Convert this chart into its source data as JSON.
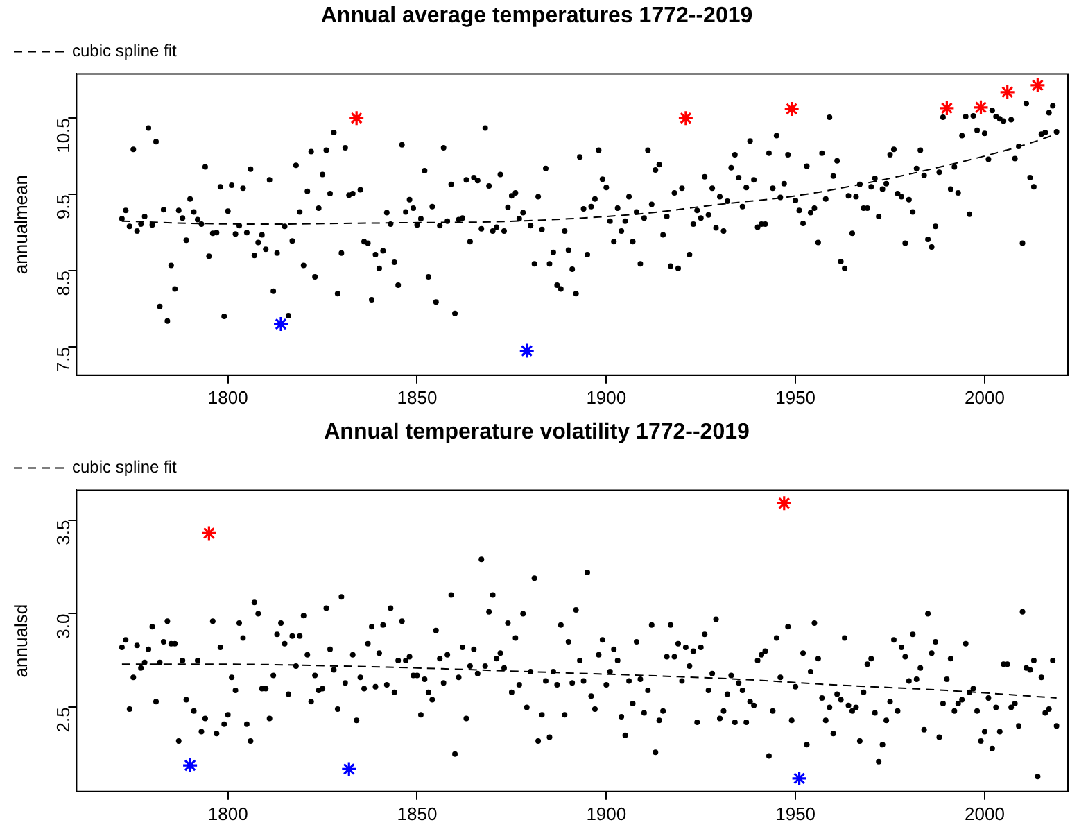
{
  "chart_data": [
    {
      "type": "scatter",
      "title": "Annual average temperatures 1772--2019",
      "ylabel": "annualmean",
      "xlim": [
        1760,
        2022
      ],
      "xticks": [
        1800,
        1850,
        1900,
        1950,
        2000
      ],
      "ylim": [
        7.13,
        11.08
      ],
      "yticks": [
        7.5,
        8.5,
        9.5,
        10.5
      ],
      "grid": false,
      "legend": "top left",
      "marker": "circle",
      "series": [
        {
          "color": "#000000",
          "x": [
            1772,
            1773,
            1774,
            1775,
            1776,
            1777,
            1778,
            1779,
            1780,
            1781,
            1782,
            1783,
            1784,
            1785,
            1786,
            1787,
            1788,
            1789,
            1790,
            1791,
            1792,
            1793,
            1794,
            1795,
            1796,
            1797,
            1798,
            1799,
            1800,
            1801,
            1802,
            1803,
            1804,
            1805,
            1806,
            1807,
            1808,
            1809,
            1810,
            1811,
            1812,
            1813,
            1815,
            1816,
            1817,
            1818,
            1819,
            1820,
            1821,
            1822,
            1823,
            1824,
            1825,
            1826,
            1827,
            1828,
            1829,
            1830,
            1831,
            1832,
            1833,
            1835,
            1836,
            1837,
            1838,
            1839,
            1840,
            1841,
            1842,
            1843,
            1844,
            1845,
            1846,
            1847,
            1848,
            1849,
            1850,
            1851,
            1852,
            1853,
            1854,
            1855,
            1856,
            1857,
            1858,
            1859,
            1860,
            1861,
            1862,
            1863,
            1864,
            1865,
            1866,
            1867,
            1868,
            1869,
            1870,
            1871,
            1872,
            1873,
            1874,
            1875,
            1876,
            1877,
            1878,
            1880,
            1881,
            1882,
            1883,
            1884,
            1885,
            1886,
            1887,
            1888,
            1889,
            1890,
            1891,
            1892,
            1893,
            1894,
            1895,
            1896,
            1897,
            1898,
            1899,
            1900,
            1901,
            1902,
            1903,
            1904,
            1905,
            1906,
            1907,
            1908,
            1909,
            1910,
            1911,
            1912,
            1913,
            1914,
            1915,
            1916,
            1917,
            1918,
            1919,
            1920,
            1922,
            1923,
            1924,
            1925,
            1926,
            1927,
            1928,
            1929,
            1930,
            1931,
            1932,
            1933,
            1934,
            1935,
            1936,
            1937,
            1938,
            1939,
            1940,
            1941,
            1942,
            1943,
            1944,
            1945,
            1946,
            1947,
            1948,
            1950,
            1951,
            1952,
            1953,
            1954,
            1955,
            1956,
            1957,
            1958,
            1959,
            1960,
            1961,
            1962,
            1963,
            1964,
            1965,
            1966,
            1967,
            1968,
            1969,
            1970,
            1971,
            1972,
            1973,
            1974,
            1975,
            1976,
            1977,
            1978,
            1979,
            1980,
            1981,
            1982,
            1983,
            1984,
            1985,
            1986,
            1987,
            1988,
            1989,
            1991,
            1992,
            1993,
            1994,
            1995,
            1996,
            1997,
            1998,
            2000,
            2001,
            2002,
            2003,
            2004,
            2005,
            2007,
            2008,
            2009,
            2010,
            2011,
            2012,
            2013,
            2015,
            2016,
            2017,
            2018,
            2019
          ],
          "values": [
            9.18,
            9.29,
            9.08,
            10.09,
            9.02,
            9.11,
            9.21,
            10.37,
            9.1,
            10.19,
            8.03,
            9.3,
            7.84,
            8.57,
            8.26,
            9.29,
            9.19,
            8.9,
            9.44,
            9.27,
            9.17,
            9.11,
            9.86,
            8.69,
            8.99,
            9.0,
            9.6,
            7.9,
            9.28,
            9.62,
            8.98,
            9.09,
            9.58,
            9.0,
            9.83,
            8.7,
            8.87,
            8.97,
            8.78,
            9.69,
            8.23,
            8.73,
            9.08,
            7.91,
            8.89,
            9.88,
            9.27,
            8.57,
            9.54,
            10.06,
            8.42,
            9.32,
            9.76,
            10.08,
            9.51,
            10.31,
            8.2,
            8.73,
            10.11,
            9.49,
            9.51,
            9.56,
            8.88,
            8.86,
            8.12,
            8.71,
            8.53,
            8.76,
            9.26,
            9.11,
            8.61,
            8.31,
            10.15,
            9.27,
            9.43,
            9.32,
            9.1,
            9.18,
            9.81,
            8.42,
            9.34,
            8.09,
            9.09,
            10.11,
            9.15,
            9.63,
            7.94,
            9.17,
            9.19,
            9.69,
            8.88,
            9.72,
            9.68,
            9.05,
            10.37,
            9.61,
            9.02,
            9.07,
            9.76,
            9.02,
            9.33,
            9.48,
            9.52,
            9.18,
            9.26,
            9.09,
            8.59,
            9.47,
            9.04,
            9.84,
            8.59,
            8.74,
            8.31,
            8.26,
            9.02,
            8.77,
            8.52,
            8.2,
            9.99,
            9.31,
            8.71,
            9.34,
            9.44,
            10.08,
            9.7,
            9.59,
            9.15,
            8.88,
            9.32,
            9.02,
            9.15,
            9.47,
            8.88,
            9.27,
            8.59,
            9.19,
            10.08,
            9.37,
            9.82,
            9.89,
            8.97,
            9.21,
            8.56,
            9.52,
            8.53,
            9.58,
            8.71,
            9.11,
            9.29,
            9.19,
            9.73,
            9.23,
            9.58,
            9.06,
            9.47,
            9.02,
            9.41,
            9.85,
            10.02,
            9.72,
            9.34,
            9.59,
            10.2,
            9.69,
            9.07,
            9.11,
            9.11,
            10.04,
            9.58,
            10.27,
            9.46,
            9.64,
            10.02,
            9.42,
            9.29,
            9.12,
            9.87,
            9.26,
            9.32,
            8.87,
            10.04,
            9.44,
            10.51,
            9.74,
            9.94,
            8.62,
            8.53,
            9.48,
            8.99,
            9.47,
            9.63,
            9.32,
            9.32,
            9.6,
            9.71,
            9.21,
            9.57,
            9.64,
            10.02,
            10.09,
            9.51,
            9.47,
            8.86,
            9.43,
            9.27,
            9.84,
            10.08,
            9.75,
            8.91,
            8.81,
            9.08,
            9.79,
            10.51,
            9.57,
            9.86,
            9.52,
            10.27,
            10.52,
            9.24,
            10.53,
            10.34,
            10.3,
            9.96,
            10.6,
            10.52,
            10.49,
            10.46,
            10.48,
            9.97,
            10.13,
            8.86,
            10.69,
            9.72,
            9.6,
            10.29,
            10.31,
            10.57,
            10.66,
            10.32
          ]
        },
        {
          "color": "#ff0000",
          "marker": "cross",
          "x": [
            1834,
            1921,
            1949,
            1990,
            1999,
            2006,
            2014
          ],
          "values": [
            10.5,
            10.5,
            10.62,
            10.63,
            10.64,
            10.84,
            10.93
          ]
        },
        {
          "color": "#0000ff",
          "marker": "cross",
          "x": [
            1814,
            1879
          ],
          "values": [
            7.8,
            7.45
          ]
        },
        {
          "type": "line",
          "name": "cubic spline fit",
          "color": "#000000",
          "line_style": "dashed",
          "marker": "none",
          "x": [
            1772,
            1790,
            1810,
            1830,
            1850,
            1870,
            1890,
            1910,
            1930,
            1950,
            1970,
            1990,
            2010,
            2019
          ],
          "values": [
            9.15,
            9.12,
            9.11,
            9.12,
            9.13,
            9.14,
            9.18,
            9.25,
            9.37,
            9.48,
            9.66,
            9.88,
            10.14,
            10.29
          ]
        }
      ]
    },
    {
      "type": "scatter",
      "title": "Annual temperature volatility 1772--2019",
      "ylabel": "annualsd",
      "xlim": [
        1760,
        2022
      ],
      "xticks": [
        1800,
        1850,
        1900,
        1950,
        2000
      ],
      "ylim": [
        2.05,
        3.66
      ],
      "yticks": [
        2.5,
        {
          "value": 3,
          "label": "3.0"
        },
        3.5
      ],
      "grid": false,
      "legend": "top left",
      "marker": "circle",
      "series": [
        {
          "color": "#000000",
          "x": [
            1772,
            1773,
            1774,
            1775,
            1776,
            1777,
            1778,
            1779,
            1780,
            1781,
            1782,
            1783,
            1784,
            1785,
            1786,
            1787,
            1788,
            1789,
            1791,
            1792,
            1793,
            1794,
            1796,
            1797,
            1798,
            1799,
            1800,
            1801,
            1802,
            1803,
            1804,
            1805,
            1806,
            1807,
            1808,
            1809,
            1810,
            1811,
            1812,
            1813,
            1814,
            1815,
            1816,
            1817,
            1818,
            1819,
            1820,
            1821,
            1822,
            1823,
            1824,
            1825,
            1826,
            1827,
            1828,
            1829,
            1830,
            1831,
            1833,
            1834,
            1835,
            1836,
            1837,
            1838,
            1839,
            1840,
            1841,
            1842,
            1843,
            1844,
            1845,
            1846,
            1847,
            1848,
            1849,
            1850,
            1851,
            1852,
            1853,
            1854,
            1855,
            1856,
            1857,
            1858,
            1859,
            1860,
            1861,
            1862,
            1863,
            1864,
            1865,
            1866,
            1867,
            1868,
            1869,
            1870,
            1871,
            1872,
            1873,
            1874,
            1875,
            1876,
            1877,
            1878,
            1879,
            1880,
            1881,
            1882,
            1883,
            1884,
            1885,
            1886,
            1887,
            1888,
            1889,
            1890,
            1891,
            1892,
            1893,
            1894,
            1895,
            1896,
            1897,
            1898,
            1899,
            1900,
            1901,
            1902,
            1903,
            1904,
            1905,
            1906,
            1907,
            1908,
            1909,
            1910,
            1911,
            1912,
            1913,
            1914,
            1915,
            1916,
            1917,
            1918,
            1919,
            1920,
            1921,
            1922,
            1923,
            1924,
            1925,
            1926,
            1927,
            1928,
            1929,
            1930,
            1931,
            1932,
            1933,
            1934,
            1935,
            1936,
            1937,
            1938,
            1939,
            1940,
            1941,
            1942,
            1943,
            1944,
            1945,
            1946,
            1948,
            1949,
            1950,
            1952,
            1953,
            1954,
            1955,
            1956,
            1957,
            1958,
            1959,
            1960,
            1961,
            1962,
            1963,
            1964,
            1965,
            1966,
            1967,
            1968,
            1969,
            1970,
            1971,
            1972,
            1973,
            1974,
            1975,
            1976,
            1977,
            1978,
            1979,
            1980,
            1981,
            1982,
            1983,
            1984,
            1985,
            1986,
            1987,
            1988,
            1989,
            1990,
            1991,
            1992,
            1993,
            1994,
            1995,
            1996,
            1997,
            1998,
            1999,
            2000,
            2001,
            2002,
            2003,
            2004,
            2005,
            2006,
            2007,
            2008,
            2009,
            2010,
            2011,
            2012,
            2013,
            2014,
            2015,
            2016,
            2017,
            2018,
            2019
          ],
          "values": [
            2.82,
            2.86,
            2.49,
            2.66,
            2.83,
            2.71,
            2.74,
            2.81,
            2.93,
            2.53,
            2.74,
            2.85,
            2.96,
            2.84,
            2.84,
            2.32,
            2.75,
            2.54,
            2.48,
            2.75,
            2.37,
            2.44,
            2.96,
            2.36,
            2.82,
            2.41,
            2.46,
            2.66,
            2.59,
            2.95,
            2.87,
            2.41,
            2.32,
            3.06,
            3.0,
            2.6,
            2.6,
            2.44,
            2.67,
            2.89,
            2.95,
            2.84,
            2.57,
            2.88,
            2.72,
            2.88,
            2.99,
            2.78,
            2.53,
            2.67,
            2.59,
            2.6,
            3.03,
            2.81,
            2.7,
            2.49,
            3.09,
            2.63,
            2.78,
            2.43,
            2.66,
            2.6,
            2.84,
            2.93,
            2.61,
            2.79,
            2.94,
            2.62,
            3.03,
            2.58,
            2.75,
            2.96,
            2.75,
            2.77,
            2.67,
            2.67,
            2.46,
            2.65,
            2.58,
            2.54,
            2.91,
            2.76,
            2.63,
            2.78,
            3.1,
            2.25,
            2.66,
            2.82,
            2.44,
            2.72,
            2.81,
            2.68,
            3.29,
            2.72,
            3.01,
            3.1,
            2.76,
            2.79,
            2.71,
            2.95,
            2.58,
            2.87,
            2.62,
            3.0,
            2.5,
            2.69,
            3.19,
            2.32,
            2.46,
            2.64,
            2.34,
            2.69,
            2.62,
            2.94,
            2.46,
            2.85,
            2.63,
            3.02,
            2.75,
            2.64,
            3.22,
            2.56,
            2.49,
            2.78,
            2.86,
            2.62,
            2.69,
            2.81,
            2.75,
            2.45,
            2.35,
            2.64,
            2.52,
            2.85,
            2.65,
            2.47,
            2.59,
            2.94,
            2.26,
            2.43,
            2.48,
            2.77,
            2.94,
            2.77,
            2.84,
            2.64,
            2.82,
            2.72,
            2.8,
            2.42,
            2.82,
            2.89,
            2.59,
            2.68,
            2.97,
            2.44,
            2.48,
            2.57,
            2.67,
            2.42,
            2.63,
            2.59,
            2.42,
            2.53,
            2.51,
            2.75,
            2.78,
            2.8,
            2.24,
            2.48,
            2.87,
            2.66,
            2.93,
            2.43,
            2.61,
            2.79,
            2.3,
            2.69,
            2.95,
            2.76,
            2.55,
            2.43,
            2.5,
            2.36,
            2.57,
            2.54,
            2.87,
            2.51,
            2.48,
            2.5,
            2.32,
            2.58,
            2.73,
            2.76,
            2.47,
            2.21,
            2.3,
            2.43,
            2.53,
            2.86,
            2.48,
            2.82,
            2.77,
            2.64,
            2.89,
            2.65,
            2.71,
            2.38,
            3.0,
            2.79,
            2.85,
            2.34,
            2.52,
            2.65,
            2.76,
            2.48,
            2.52,
            2.54,
            2.84,
            2.58,
            2.6,
            2.48,
            2.32,
            2.37,
            2.55,
            2.28,
            2.5,
            2.37,
            2.73,
            2.73,
            2.5,
            2.52,
            2.4,
            3.01,
            2.71,
            2.7,
            2.75,
            2.13,
            2.66,
            2.47,
            2.49,
            2.75,
            2.4
          ]
        },
        {
          "color": "#ff0000",
          "marker": "cross",
          "x": [
            1795,
            1947
          ],
          "values": [
            3.43,
            3.59
          ]
        },
        {
          "color": "#0000ff",
          "marker": "cross",
          "x": [
            1790,
            1832,
            1951
          ],
          "values": [
            2.19,
            2.17,
            2.12
          ]
        },
        {
          "type": "line",
          "name": "cubic spline fit",
          "color": "#000000",
          "line_style": "dashed",
          "marker": "none",
          "x": [
            1772,
            1800,
            1830,
            1850,
            1880,
            1910,
            1935,
            1960,
            1990,
            2019
          ],
          "values": [
            2.73,
            2.73,
            2.72,
            2.71,
            2.69,
            2.67,
            2.65,
            2.62,
            2.59,
            2.55
          ]
        }
      ]
    }
  ]
}
